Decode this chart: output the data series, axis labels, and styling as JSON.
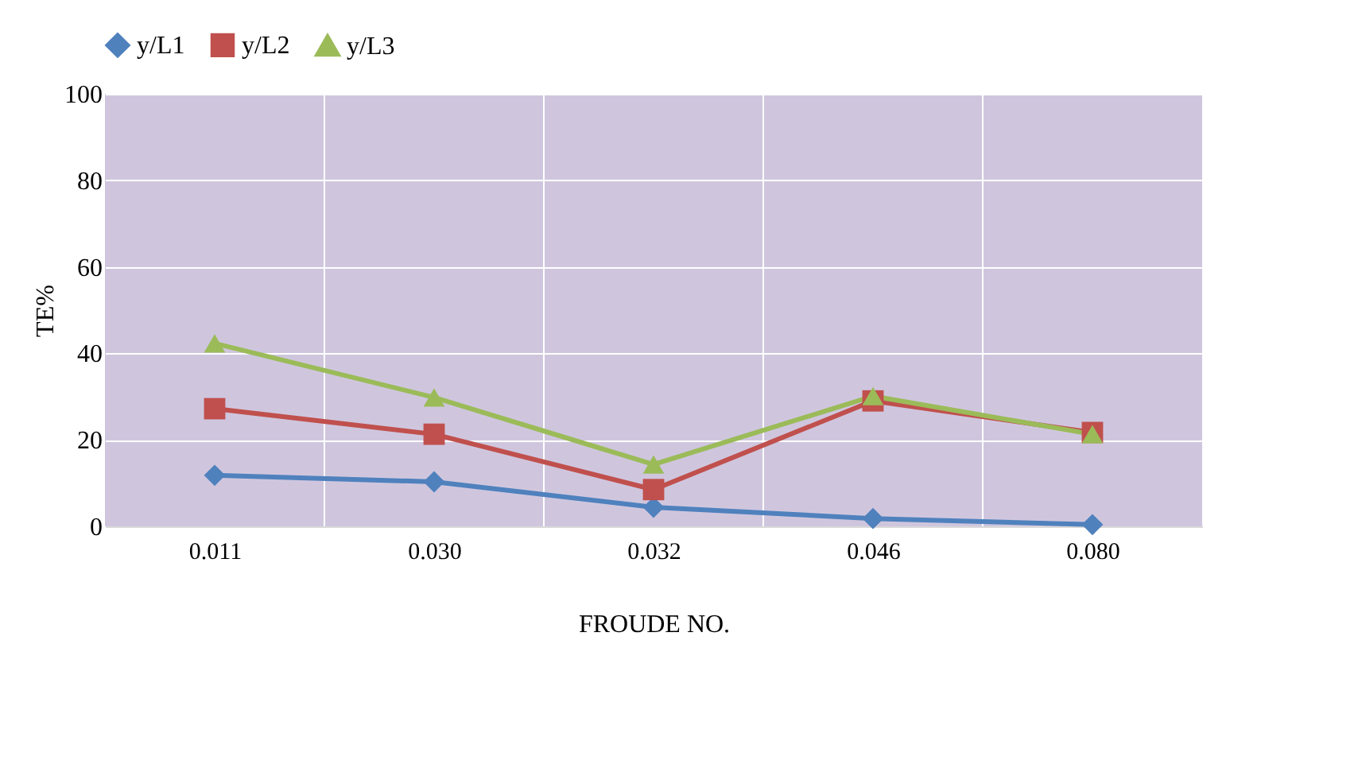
{
  "chart_data": {
    "type": "line",
    "xlabel": "FROUDE NO.",
    "ylabel": "TE%",
    "categories": [
      "0.011",
      "0.030",
      "0.032",
      "0.046",
      "0.080"
    ],
    "series": [
      {
        "name": "y/L1",
        "color": "#4f81bd",
        "marker": "diamond",
        "values": [
          11.8,
          10.3,
          4.4,
          1.8,
          0.4
        ]
      },
      {
        "name": "y/L2",
        "color": "#c0504d",
        "marker": "square",
        "values": [
          27.2,
          21.3,
          8.5,
          29,
          21.7
        ]
      },
      {
        "name": "y/L3",
        "color": "#9bbb59",
        "marker": "triangle",
        "values": [
          42.3,
          29.8,
          14.3,
          30.1,
          21.3
        ]
      }
    ],
    "ylim": [
      0,
      100
    ],
    "yticks": [
      0,
      20,
      40,
      60,
      80,
      100
    ],
    "grid": true,
    "legend": "top"
  }
}
